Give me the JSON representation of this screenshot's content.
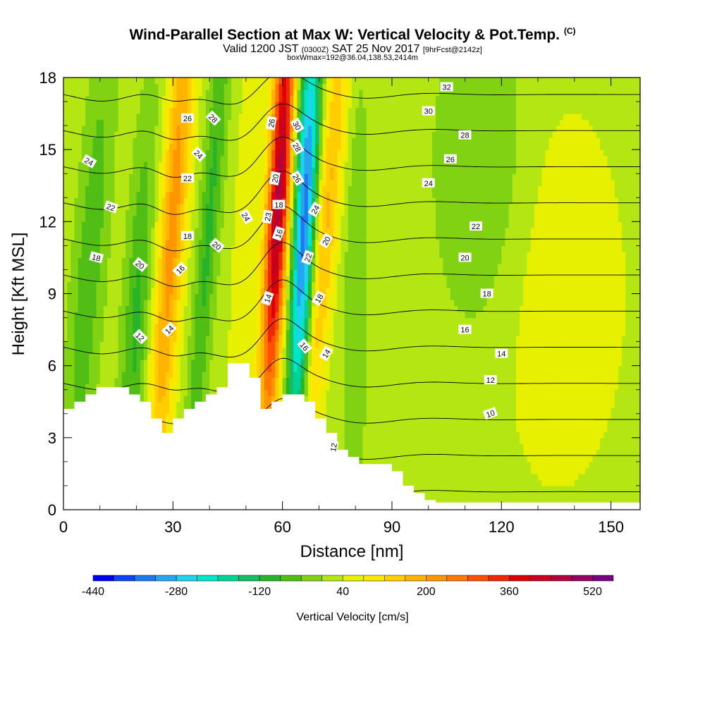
{
  "header": {
    "title": "Wind-Parallel Section at Max W: Vertical Velocity & Pot.Temp.",
    "copyright": "(C)",
    "valid_prefix": "Valid 1200 JST",
    "valid_utc": "(0300Z)",
    "valid_date": "SAT 25 Nov 2017",
    "forecast": "[9hrFcst@2142z]",
    "boxinfo": "boxWmax=192@36.04,138.53,2414m"
  },
  "chart_data": {
    "type": "heatmap",
    "xlabel": "Distance [nm]",
    "ylabel": "Height [Kft MSL]",
    "xlim": [
      0,
      158
    ],
    "ylim": [
      0,
      18
    ],
    "x_ticks": [
      "0",
      "30",
      "60",
      "90",
      "120",
      "150"
    ],
    "x_tick_values": [
      0,
      30,
      60,
      90,
      120,
      150
    ],
    "y_ticks": [
      "0",
      "3",
      "6",
      "9",
      "12",
      "15",
      "18"
    ],
    "y_tick_values": [
      0,
      3,
      6,
      9,
      12,
      15,
      18
    ],
    "colorbar": {
      "label": "Vertical Velocity [cm/s]",
      "tick_labels": [
        "-440",
        "-280",
        "-120",
        "40",
        "200",
        "360",
        "520"
      ],
      "tick_values": [
        -440,
        -280,
        -120,
        40,
        200,
        360,
        520
      ],
      "levels": [
        -440,
        -400,
        -360,
        -320,
        -280,
        -240,
        -200,
        -160,
        -120,
        -80,
        -40,
        0,
        40,
        80,
        120,
        160,
        200,
        240,
        280,
        320,
        360,
        400,
        440,
        480,
        520,
        560
      ],
      "colors": [
        "#0000f0",
        "#0a46f5",
        "#1e78f0",
        "#28a5f0",
        "#1ed2f0",
        "#00e6c8",
        "#00d296",
        "#14be64",
        "#28b428",
        "#50be14",
        "#82d214",
        "#b4e614",
        "#e6f000",
        "#ffe600",
        "#ffcd00",
        "#ffb400",
        "#ff9600",
        "#ff7800",
        "#ff5000",
        "#f02800",
        "#dc0000",
        "#c8001e",
        "#b4003c",
        "#960064",
        "#780082"
      ]
    },
    "terrain": [
      [
        0,
        4.2
      ],
      [
        3,
        4.2
      ],
      [
        3,
        4.5
      ],
      [
        6,
        4.5
      ],
      [
        6,
        4.8
      ],
      [
        9,
        4.8
      ],
      [
        9,
        5.1
      ],
      [
        18,
        5.1
      ],
      [
        18,
        4.8
      ],
      [
        21,
        4.8
      ],
      [
        21,
        4.5
      ],
      [
        24,
        4.5
      ],
      [
        24,
        3.8
      ],
      [
        27,
        3.8
      ],
      [
        27,
        3.2
      ],
      [
        30,
        3.2
      ],
      [
        30,
        3.8
      ],
      [
        33,
        3.8
      ],
      [
        33,
        4.2
      ],
      [
        36,
        4.2
      ],
      [
        36,
        4.5
      ],
      [
        39,
        4.5
      ],
      [
        39,
        4.8
      ],
      [
        42,
        4.8
      ],
      [
        42,
        5.1
      ],
      [
        45,
        5.1
      ],
      [
        45,
        6.1
      ],
      [
        51,
        6.1
      ],
      [
        51,
        5.5
      ],
      [
        54,
        5.5
      ],
      [
        54,
        4.2
      ],
      [
        57,
        4.2
      ],
      [
        57,
        4.5
      ],
      [
        60,
        4.5
      ],
      [
        60,
        4.8
      ],
      [
        66,
        4.8
      ],
      [
        66,
        4.5
      ],
      [
        69,
        4.5
      ],
      [
        69,
        3.8
      ],
      [
        72,
        3.8
      ],
      [
        72,
        3.2
      ],
      [
        75,
        3.2
      ],
      [
        75,
        2.5
      ],
      [
        78,
        2.5
      ],
      [
        78,
        2.2
      ],
      [
        81,
        2.2
      ],
      [
        81,
        1.9
      ],
      [
        90,
        1.9
      ],
      [
        90,
        1.6
      ],
      [
        93,
        1.6
      ],
      [
        93,
        1.0
      ],
      [
        96,
        1.0
      ],
      [
        96,
        0.7
      ],
      [
        99,
        0.7
      ],
      [
        99,
        0.4
      ],
      [
        102,
        0.4
      ],
      [
        102,
        0.3
      ],
      [
        158,
        0.3
      ]
    ],
    "w_blobs": [
      {
        "x": 59,
        "z": 13,
        "sx": 2.2,
        "sz": 7,
        "amp": 440,
        "tilt": 0.35
      },
      {
        "x": 66,
        "z": 12,
        "sx": 2.2,
        "sz": 7,
        "amp": -360,
        "tilt": 0.3
      },
      {
        "x": 30,
        "z": 12,
        "sx": 2.6,
        "sz": 9,
        "amp": 200,
        "tilt": 0.45
      },
      {
        "x": 40,
        "z": 12,
        "sx": 2.0,
        "sz": 8,
        "amp": -110,
        "tilt": 0.5
      },
      {
        "x": 72,
        "z": 12,
        "sx": 2.4,
        "sz": 8,
        "amp": 150,
        "tilt": 0.55
      },
      {
        "x": 50,
        "z": 11,
        "sx": 2.4,
        "sz": 9,
        "amp": 60,
        "tilt": 0.3
      },
      {
        "x": 20,
        "z": 8,
        "sx": 2.5,
        "sz": 6,
        "amp": -110,
        "tilt": 0.4
      },
      {
        "x": 7,
        "z": 10,
        "sx": 3.0,
        "sz": 7,
        "amp": -90,
        "tilt": 0.5
      },
      {
        "x": 80,
        "z": 8,
        "sx": 2.2,
        "sz": 7,
        "amp": -60,
        "tilt": 0.1
      },
      {
        "x": 135,
        "z": 9,
        "sx": 14,
        "sz": 6,
        "amp": 50,
        "tilt": 0.0
      },
      {
        "x": 115,
        "z": 14,
        "sx": 9,
        "sz": 5,
        "amp": -70,
        "tilt": 0.0
      }
    ],
    "theta_levels": [
      10,
      12,
      14,
      16,
      18,
      20,
      22,
      24,
      26,
      28,
      30,
      32
    ],
    "contour_labels": [
      {
        "text": "32",
        "x": 105,
        "z": 17.6,
        "angle": 0
      },
      {
        "text": "30",
        "x": 100,
        "z": 16.6,
        "angle": 0
      },
      {
        "text": "28",
        "x": 110,
        "z": 15.6,
        "angle": 0
      },
      {
        "text": "26",
        "x": 106,
        "z": 14.6,
        "angle": 0
      },
      {
        "text": "24",
        "x": 100,
        "z": 13.6,
        "angle": 0
      },
      {
        "text": "22",
        "x": 113,
        "z": 11.8,
        "angle": 0
      },
      {
        "text": "20",
        "x": 110,
        "z": 10.5,
        "angle": 0
      },
      {
        "text": "18",
        "x": 116,
        "z": 9.0,
        "angle": 0
      },
      {
        "text": "16",
        "x": 110,
        "z": 7.5,
        "angle": 0
      },
      {
        "text": "14",
        "x": 120,
        "z": 6.5,
        "angle": 0
      },
      {
        "text": "12",
        "x": 117,
        "z": 5.4,
        "angle": 0
      },
      {
        "text": "10",
        "x": 117,
        "z": 4.0,
        "angle": -20
      },
      {
        "text": "24",
        "x": 7,
        "z": 14.5,
        "angle": 30
      },
      {
        "text": "22",
        "x": 13,
        "z": 12.6,
        "angle": 20
      },
      {
        "text": "18",
        "x": 9,
        "z": 10.5,
        "angle": 15
      },
      {
        "text": "20",
        "x": 21,
        "z": 10.2,
        "angle": 40
      },
      {
        "text": "12",
        "x": 21,
        "z": 7.2,
        "angle": 45
      },
      {
        "text": "26",
        "x": 34,
        "z": 16.3,
        "angle": 0
      },
      {
        "text": "28",
        "x": 41,
        "z": 16.3,
        "angle": 45
      },
      {
        "text": "24",
        "x": 37,
        "z": 14.8,
        "angle": 45
      },
      {
        "text": "22",
        "x": 34,
        "z": 13.8,
        "angle": 0
      },
      {
        "text": "18",
        "x": 34,
        "z": 11.4,
        "angle": 0
      },
      {
        "text": "16",
        "x": 32,
        "z": 10.0,
        "angle": -45
      },
      {
        "text": "20",
        "x": 42,
        "z": 11.0,
        "angle": 40
      },
      {
        "text": "14",
        "x": 29,
        "z": 7.5,
        "angle": -45
      },
      {
        "text": "24",
        "x": 50,
        "z": 12.2,
        "angle": 60
      },
      {
        "text": "23",
        "x": 56,
        "z": 12.2,
        "angle": -80
      },
      {
        "text": "26",
        "x": 57,
        "z": 16.1,
        "angle": -80
      },
      {
        "text": "20",
        "x": 58,
        "z": 13.8,
        "angle": -80
      },
      {
        "text": "18",
        "x": 59,
        "z": 12.7,
        "angle": 0
      },
      {
        "text": "16",
        "x": 59,
        "z": 11.5,
        "angle": -70
      },
      {
        "text": "14",
        "x": 56,
        "z": 8.8,
        "angle": -70
      },
      {
        "text": "30",
        "x": 64,
        "z": 16.0,
        "angle": 60
      },
      {
        "text": "28",
        "x": 64,
        "z": 15.1,
        "angle": 60
      },
      {
        "text": "26",
        "x": 64,
        "z": 13.8,
        "angle": 60
      },
      {
        "text": "24",
        "x": 69,
        "z": 12.5,
        "angle": -60
      },
      {
        "text": "20",
        "x": 72,
        "z": 11.2,
        "angle": -60
      },
      {
        "text": "22",
        "x": 67,
        "z": 10.5,
        "angle": -70
      },
      {
        "text": "18",
        "x": 70,
        "z": 8.8,
        "angle": -60
      },
      {
        "text": "16",
        "x": 66,
        "z": 6.8,
        "angle": 50
      },
      {
        "text": "14",
        "x": 72,
        "z": 6.5,
        "angle": -60
      },
      {
        "text": "12",
        "x": 74,
        "z": 2.6,
        "angle": -80
      }
    ]
  }
}
